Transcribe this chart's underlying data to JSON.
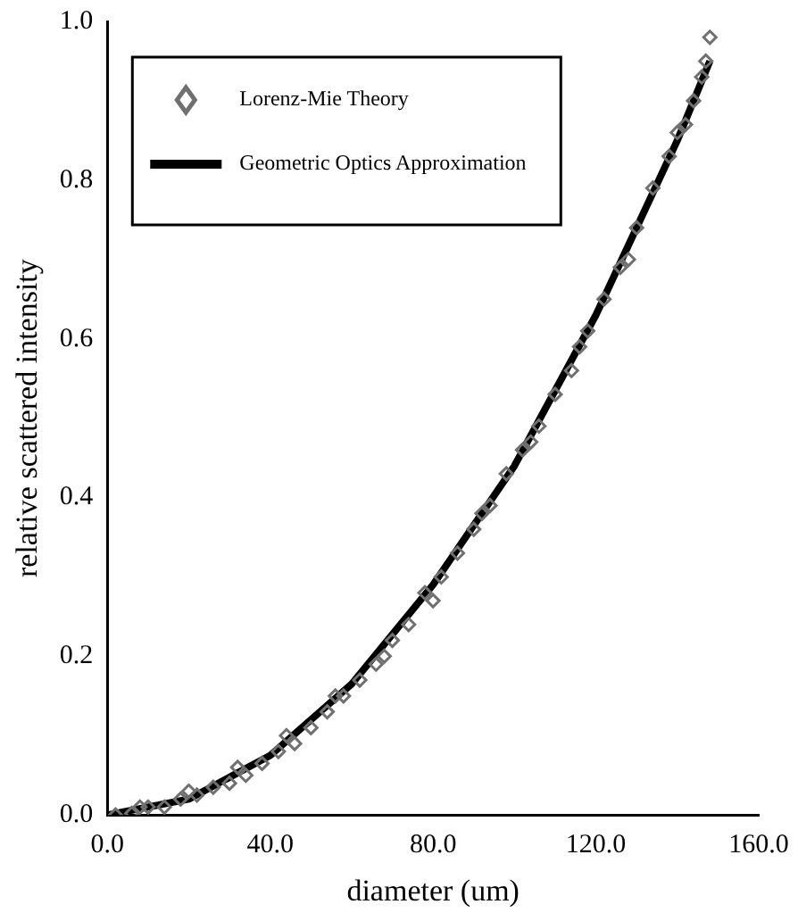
{
  "chart_data": {
    "type": "scatter",
    "xlabel": "diameter (um)",
    "ylabel": "relative scattered intensity",
    "xlim": [
      0,
      160
    ],
    "ylim": [
      0,
      1
    ],
    "xticks": [
      {
        "value": 0,
        "label": "0.0"
      },
      {
        "value": 40,
        "label": "40.0"
      },
      {
        "value": 80,
        "label": "80.0"
      },
      {
        "value": 120,
        "label": "120.0"
      },
      {
        "value": 160,
        "label": "160.0"
      }
    ],
    "yticks": [
      {
        "value": 0,
        "label": "0.0"
      },
      {
        "value": 0.2,
        "label": "0.2"
      },
      {
        "value": 0.4,
        "label": "0.4"
      },
      {
        "value": 0.6,
        "label": "0.6"
      },
      {
        "value": 0.8,
        "label": "0.8"
      },
      {
        "value": 1,
        "label": "1.0"
      }
    ],
    "grid": false,
    "legend": "top left",
    "series": [
      {
        "name": "Lorenz-Mie Theory",
        "type": "scatter",
        "marker": "diamond",
        "color": "#707070",
        "x": [
          2,
          6,
          10,
          14,
          18,
          22,
          26,
          30,
          34,
          38,
          42,
          46,
          50,
          54,
          58,
          62,
          66,
          70,
          74,
          78,
          82,
          86,
          90,
          94,
          98,
          102,
          106,
          110,
          114,
          118,
          122,
          126,
          130,
          134,
          138,
          142,
          146,
          148,
          8,
          20,
          32,
          44,
          56,
          68,
          80,
          92,
          104,
          116,
          128,
          140,
          144,
          147
        ],
        "values": [
          0,
          0.002,
          0.01,
          0.01,
          0.02,
          0.025,
          0.035,
          0.04,
          0.05,
          0.065,
          0.08,
          0.09,
          0.11,
          0.13,
          0.15,
          0.17,
          0.19,
          0.22,
          0.24,
          0.28,
          0.3,
          0.33,
          0.36,
          0.39,
          0.43,
          0.46,
          0.49,
          0.53,
          0.56,
          0.61,
          0.65,
          0.69,
          0.74,
          0.79,
          0.83,
          0.87,
          0.93,
          0.98,
          0.01,
          0.03,
          0.06,
          0.1,
          0.15,
          0.2,
          0.27,
          0.38,
          0.47,
          0.59,
          0.7,
          0.86,
          0.9,
          0.95
        ]
      },
      {
        "name": "Geometric Optics Approximation",
        "type": "line",
        "marker": "none",
        "line_style": "solid",
        "color": "#000000",
        "x": [
          0,
          20,
          40,
          60,
          80,
          100,
          120,
          140,
          148
        ],
        "values": [
          0,
          0.02,
          0.075,
          0.165,
          0.29,
          0.44,
          0.63,
          0.85,
          0.95
        ]
      }
    ]
  }
}
